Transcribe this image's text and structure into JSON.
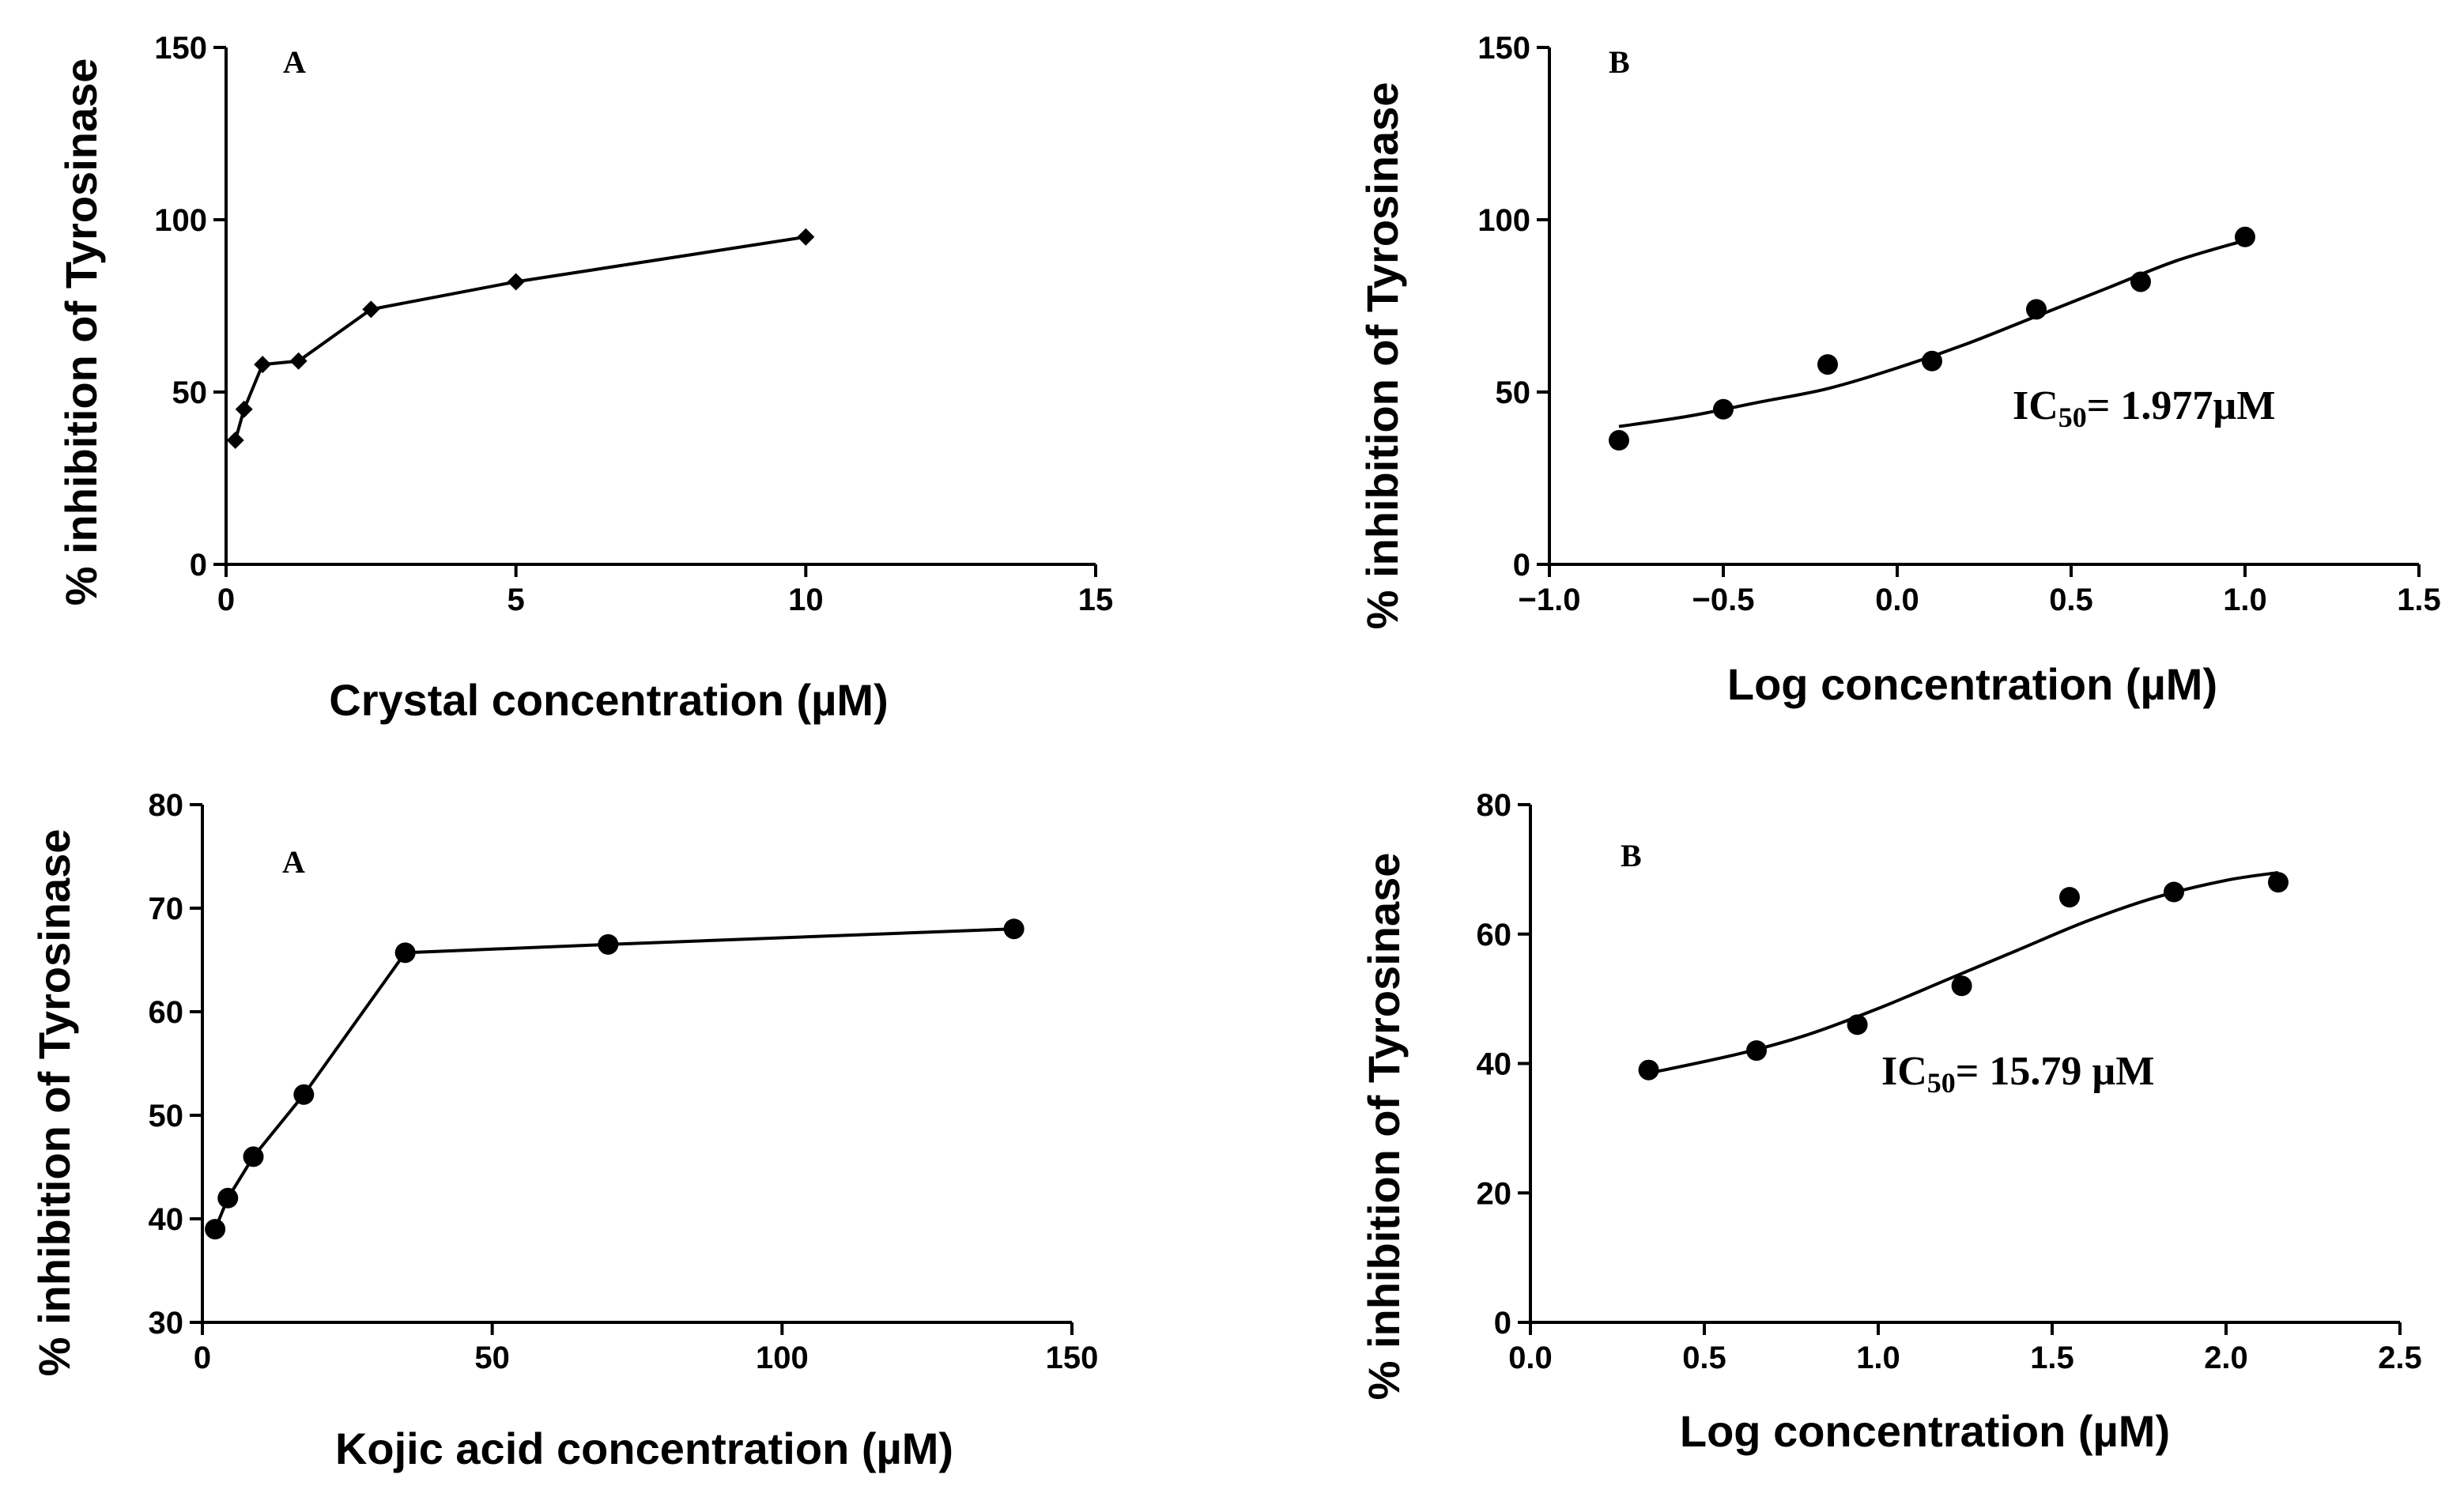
{
  "chart_data": [
    {
      "type": "line",
      "panel_label": "A",
      "xlabel": "Crystal concentration (µM)",
      "ylabel": "% inhibition of Tyrosinase",
      "xlim": [
        0,
        15
      ],
      "ylim": [
        0,
        150
      ],
      "x_ticks": [
        0,
        5,
        10,
        15
      ],
      "y_ticks": [
        0,
        50,
        100,
        150
      ],
      "marker": "diamond",
      "grid": false,
      "series": [
        {
          "x": [
            0.16,
            0.31,
            0.63,
            1.25,
            2.5,
            5,
            10
          ],
          "values": [
            36,
            45,
            58,
            59,
            74,
            82,
            95
          ]
        }
      ]
    },
    {
      "type": "scatter",
      "panel_label": "B",
      "xlabel": "Log concentration (µM)",
      "ylabel": "% inhibition of Tyrosinase",
      "xlim": [
        -1.0,
        1.5
      ],
      "ylim": [
        0,
        150
      ],
      "x_ticks": [
        -1.0,
        -0.5,
        0.0,
        0.5,
        1.0,
        1.5
      ],
      "y_ticks": [
        0,
        50,
        100,
        150
      ],
      "marker": "circle",
      "fit": "sigmoidal",
      "grid": false,
      "annotation": {
        "prefix": "IC",
        "sub": "50",
        "value": "= 1.977µM"
      },
      "series": [
        {
          "x": [
            -0.8,
            -0.5,
            -0.2,
            0.1,
            0.4,
            0.7,
            1.0
          ],
          "values": [
            36,
            45,
            58,
            59,
            74,
            82,
            95
          ]
        }
      ],
      "fit_curve": {
        "x": [
          -0.8,
          -0.6,
          -0.4,
          -0.2,
          0.0,
          0.2,
          0.4,
          0.6,
          0.8,
          1.0
        ],
        "values": [
          40,
          43,
          47,
          51,
          57,
          64,
          72,
          80,
          88,
          94
        ]
      }
    },
    {
      "type": "line",
      "panel_label": "A",
      "xlabel": "Kojic acid concentration (µM)",
      "ylabel": "% inhibition of Tyrosinase",
      "xlim": [
        0,
        150
      ],
      "ylim": [
        30,
        80
      ],
      "x_ticks": [
        0,
        50,
        100,
        150
      ],
      "y_ticks": [
        30,
        40,
        50,
        60,
        70,
        80
      ],
      "marker": "circle",
      "grid": false,
      "series": [
        {
          "x": [
            2.2,
            4.4,
            8.8,
            17.5,
            35,
            70,
            140
          ],
          "values": [
            39,
            42,
            46,
            52,
            65.7,
            66.5,
            68
          ]
        }
      ]
    },
    {
      "type": "scatter",
      "panel_label": "B",
      "xlabel": "Log concentration (µM)",
      "ylabel": "% inhibition of Tyrosinase",
      "xlim": [
        0.0,
        2.5
      ],
      "ylim": [
        0,
        80
      ],
      "x_ticks": [
        0.0,
        0.5,
        1.0,
        1.5,
        2.0,
        2.5
      ],
      "y_ticks": [
        0,
        20,
        40,
        60,
        80
      ],
      "marker": "circle",
      "fit": "sigmoidal",
      "grid": false,
      "annotation": {
        "prefix": "IC",
        "sub": "50",
        "value": "= 15.79 µM"
      },
      "series": [
        {
          "x": [
            0.34,
            0.65,
            0.94,
            1.24,
            1.55,
            1.85,
            2.15
          ],
          "values": [
            39,
            42,
            46,
            52,
            65.7,
            66.5,
            68
          ]
        }
      ],
      "fit_curve": {
        "x": [
          0.34,
          0.6,
          0.8,
          1.0,
          1.2,
          1.4,
          1.6,
          1.8,
          2.0,
          2.15
        ],
        "values": [
          38.5,
          41.5,
          44.5,
          48.5,
          53,
          57.5,
          62,
          65.7,
          68.3,
          69.5
        ]
      }
    }
  ]
}
